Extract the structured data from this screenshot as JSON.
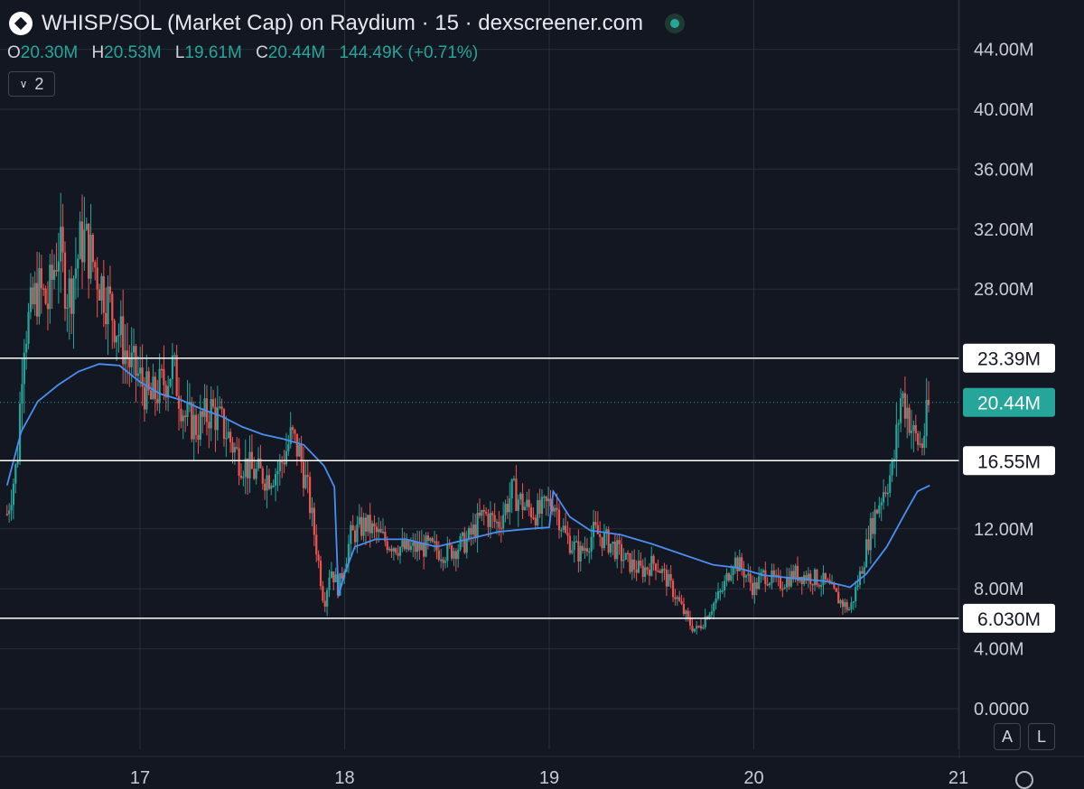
{
  "header": {
    "title": "WHISP/SOL (Market Cap) on Raydium · 15 · dexscreener.com"
  },
  "ohlc": {
    "o_label": "O",
    "o": "20.30M",
    "h_label": "H",
    "h": "20.53M",
    "l_label": "L",
    "l": "19.61M",
    "c_label": "C",
    "c": "20.44M",
    "change": "144.49K (+0.71%)"
  },
  "indicator_toggle": {
    "count": "2"
  },
  "scale_buttons": {
    "auto": "A",
    "log": "L"
  },
  "colors": {
    "background": "#131722",
    "up": "#26a69a",
    "down": "#ef5350",
    "ma_line": "#4a8ff0",
    "level_line": "#ffffff",
    "grid": "#2a2e39"
  },
  "chart_data": {
    "type": "candlestick",
    "x_ticks": [
      "17",
      "18",
      "19",
      "20",
      "21"
    ],
    "y_ticks": [
      "0.0000",
      "4.00M",
      "8.00M",
      "12.00M",
      "28.00M",
      "32.00M",
      "36.00M",
      "40.00M",
      "44.00M"
    ],
    "ylim": [
      0,
      46
    ],
    "xlim": [
      16.35,
      21.2
    ],
    "horizontal_levels": [
      {
        "label": "23.39M",
        "value": 23.39
      },
      {
        "label": "16.55M",
        "value": 16.55
      },
      {
        "label": "6.030M",
        "value": 6.03
      }
    ],
    "last_price": {
      "label": "20.44M",
      "value": 20.44
    },
    "ma_series": [
      [
        16.35,
        14.9
      ],
      [
        16.42,
        18.5
      ],
      [
        16.5,
        20.5
      ],
      [
        16.6,
        21.6
      ],
      [
        16.7,
        22.5
      ],
      [
        16.8,
        23.0
      ],
      [
        16.9,
        22.9
      ],
      [
        17.0,
        21.8
      ],
      [
        17.1,
        21.0
      ],
      [
        17.2,
        20.6
      ],
      [
        17.3,
        20.0
      ],
      [
        17.4,
        19.5
      ],
      [
        17.5,
        18.8
      ],
      [
        17.6,
        18.3
      ],
      [
        17.7,
        18.0
      ],
      [
        17.8,
        17.6
      ],
      [
        17.9,
        16.2
      ],
      [
        17.95,
        14.8
      ],
      [
        17.97,
        7.5
      ],
      [
        18.0,
        9.0
      ],
      [
        18.05,
        10.8
      ],
      [
        18.15,
        11.3
      ],
      [
        18.3,
        11.3
      ],
      [
        18.45,
        10.8
      ],
      [
        18.6,
        11.3
      ],
      [
        18.75,
        11.8
      ],
      [
        18.9,
        12.0
      ],
      [
        19.0,
        12.1
      ],
      [
        19.02,
        14.5
      ],
      [
        19.1,
        12.8
      ],
      [
        19.2,
        11.9
      ],
      [
        19.35,
        11.6
      ],
      [
        19.5,
        11.0
      ],
      [
        19.65,
        10.3
      ],
      [
        19.8,
        9.6
      ],
      [
        19.92,
        9.4
      ],
      [
        20.05,
        8.9
      ],
      [
        20.2,
        8.7
      ],
      [
        20.35,
        8.5
      ],
      [
        20.47,
        8.1
      ],
      [
        20.55,
        9.0
      ],
      [
        20.65,
        10.8
      ],
      [
        20.75,
        13.3
      ],
      [
        20.8,
        14.5
      ],
      [
        20.86,
        14.9
      ]
    ],
    "candle_path": [
      [
        16.35,
        13.0
      ],
      [
        16.4,
        16.5
      ],
      [
        16.43,
        25.0
      ],
      [
        16.46,
        26.0
      ],
      [
        16.5,
        28.0
      ],
      [
        16.55,
        27.0
      ],
      [
        16.6,
        31.0
      ],
      [
        16.65,
        27.5
      ],
      [
        16.72,
        31.5
      ],
      [
        16.78,
        29.5
      ],
      [
        16.85,
        27.0
      ],
      [
        16.9,
        25.0
      ],
      [
        16.95,
        23.0
      ],
      [
        17.0,
        22.0
      ],
      [
        17.05,
        20.5
      ],
      [
        17.1,
        21.5
      ],
      [
        17.16,
        22.8
      ],
      [
        17.22,
        19.5
      ],
      [
        17.28,
        18.8
      ],
      [
        17.35,
        20.0
      ],
      [
        17.42,
        18.5
      ],
      [
        17.48,
        16.8
      ],
      [
        17.55,
        15.8
      ],
      [
        17.62,
        15.5
      ],
      [
        17.68,
        16.0
      ],
      [
        17.74,
        18.2
      ],
      [
        17.78,
        17.0
      ],
      [
        17.82,
        14.5
      ],
      [
        17.86,
        11.0
      ],
      [
        17.9,
        7.0
      ],
      [
        17.93,
        9.5
      ],
      [
        17.97,
        8.0
      ],
      [
        18.03,
        11.5
      ],
      [
        18.1,
        12.3
      ],
      [
        18.2,
        11.2
      ],
      [
        18.3,
        10.6
      ],
      [
        18.4,
        10.8
      ],
      [
        18.5,
        10.4
      ],
      [
        18.6,
        11.2
      ],
      [
        18.68,
        13.0
      ],
      [
        18.75,
        12.3
      ],
      [
        18.82,
        14.5
      ],
      [
        18.88,
        13.5
      ],
      [
        18.95,
        13.0
      ],
      [
        19.02,
        14.0
      ],
      [
        19.08,
        11.5
      ],
      [
        19.15,
        10.3
      ],
      [
        19.22,
        11.8
      ],
      [
        19.3,
        11.0
      ],
      [
        19.38,
        9.8
      ],
      [
        19.45,
        9.2
      ],
      [
        19.52,
        9.8
      ],
      [
        19.58,
        8.5
      ],
      [
        19.63,
        7.2
      ],
      [
        19.68,
        5.8
      ],
      [
        19.72,
        5.2
      ],
      [
        19.78,
        6.5
      ],
      [
        19.85,
        8.0
      ],
      [
        19.9,
        10.0
      ],
      [
        19.95,
        9.2
      ],
      [
        20.0,
        8.0
      ],
      [
        20.05,
        9.0
      ],
      [
        20.12,
        8.3
      ],
      [
        20.2,
        9.0
      ],
      [
        20.28,
        8.8
      ],
      [
        20.35,
        8.4
      ],
      [
        20.42,
        7.2
      ],
      [
        20.47,
        6.6
      ],
      [
        20.52,
        9.0
      ],
      [
        20.58,
        12.5
      ],
      [
        20.63,
        14.5
      ],
      [
        20.68,
        16.0
      ],
      [
        20.72,
        21.0
      ],
      [
        20.75,
        20.0
      ],
      [
        20.78,
        18.2
      ],
      [
        20.82,
        17.5
      ],
      [
        20.86,
        20.4
      ]
    ]
  }
}
